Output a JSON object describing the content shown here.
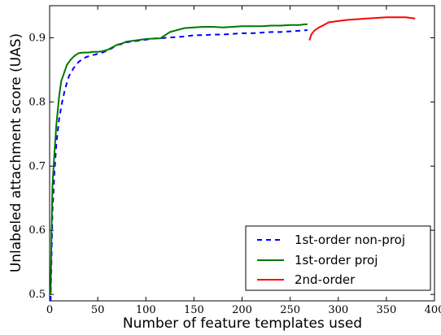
{
  "chart_data": {
    "type": "line",
    "title": "",
    "xlabel": "Number of feature templates used",
    "ylabel": "Unlabeled attachment score (UAS)",
    "xlim": [
      0,
      400
    ],
    "ylim": [
      0.49,
      0.95
    ],
    "xticks": [
      0,
      50,
      100,
      150,
      200,
      250,
      300,
      350,
      400
    ],
    "yticks": [
      0.5,
      0.6,
      0.7,
      0.8,
      0.9
    ],
    "xtick_labels": [
      "0",
      "50",
      "100",
      "150",
      "200",
      "250",
      "300",
      "350",
      "400"
    ],
    "ytick_labels": [
      "0.5",
      "0.6",
      "0.7",
      "0.8",
      "0.9"
    ],
    "grid": false,
    "legend": {
      "position": "bottom-right",
      "entries": [
        "1st-order non-proj",
        "1st-order proj",
        "2nd-order"
      ]
    },
    "series": [
      {
        "name": "1st-order non-proj",
        "color": "#0000ff",
        "style": "dashed",
        "x": [
          1,
          2,
          3,
          5,
          7,
          10,
          13,
          16,
          20,
          25,
          30,
          35,
          40,
          45,
          50,
          55,
          60,
          65,
          70,
          75,
          80,
          90,
          100,
          110,
          115,
          120,
          130,
          140,
          150,
          160,
          170,
          180,
          190,
          200,
          210,
          220,
          230,
          240,
          250,
          260,
          268
        ],
        "y": [
          0.49,
          0.56,
          0.63,
          0.69,
          0.735,
          0.775,
          0.8,
          0.82,
          0.84,
          0.853,
          0.862,
          0.868,
          0.871,
          0.873,
          0.875,
          0.877,
          0.88,
          0.884,
          0.889,
          0.89,
          0.893,
          0.895,
          0.897,
          0.899,
          0.899,
          0.9,
          0.901,
          0.902,
          0.904,
          0.904,
          0.905,
          0.905,
          0.906,
          0.907,
          0.907,
          0.908,
          0.909,
          0.909,
          0.91,
          0.911,
          0.912
        ]
      },
      {
        "name": "1st-order proj",
        "color": "#007700",
        "style": "solid",
        "x": [
          1,
          2,
          3,
          5,
          7,
          10,
          12,
          15,
          18,
          22,
          26,
          30,
          35,
          40,
          45,
          50,
          55,
          60,
          65,
          70,
          75,
          80,
          90,
          100,
          110,
          115,
          120,
          125,
          130,
          140,
          150,
          160,
          170,
          180,
          190,
          200,
          210,
          220,
          230,
          240,
          250,
          260,
          265,
          268
        ],
        "y": [
          0.5,
          0.6,
          0.67,
          0.72,
          0.765,
          0.81,
          0.832,
          0.845,
          0.858,
          0.866,
          0.872,
          0.876,
          0.877,
          0.877,
          0.878,
          0.878,
          0.879,
          0.881,
          0.885,
          0.889,
          0.891,
          0.894,
          0.896,
          0.898,
          0.899,
          0.899,
          0.904,
          0.909,
          0.911,
          0.915,
          0.916,
          0.917,
          0.917,
          0.916,
          0.917,
          0.918,
          0.918,
          0.918,
          0.919,
          0.919,
          0.92,
          0.92,
          0.921,
          0.921
        ]
      },
      {
        "name": "2nd-order",
        "color": "#ff0000",
        "style": "solid",
        "x": [
          270,
          272,
          275,
          280,
          285,
          290,
          300,
          310,
          320,
          330,
          340,
          350,
          360,
          370,
          375,
          380
        ],
        "y": [
          0.896,
          0.905,
          0.911,
          0.916,
          0.92,
          0.924,
          0.926,
          0.928,
          0.929,
          0.93,
          0.931,
          0.932,
          0.932,
          0.932,
          0.931,
          0.93
        ]
      }
    ]
  }
}
